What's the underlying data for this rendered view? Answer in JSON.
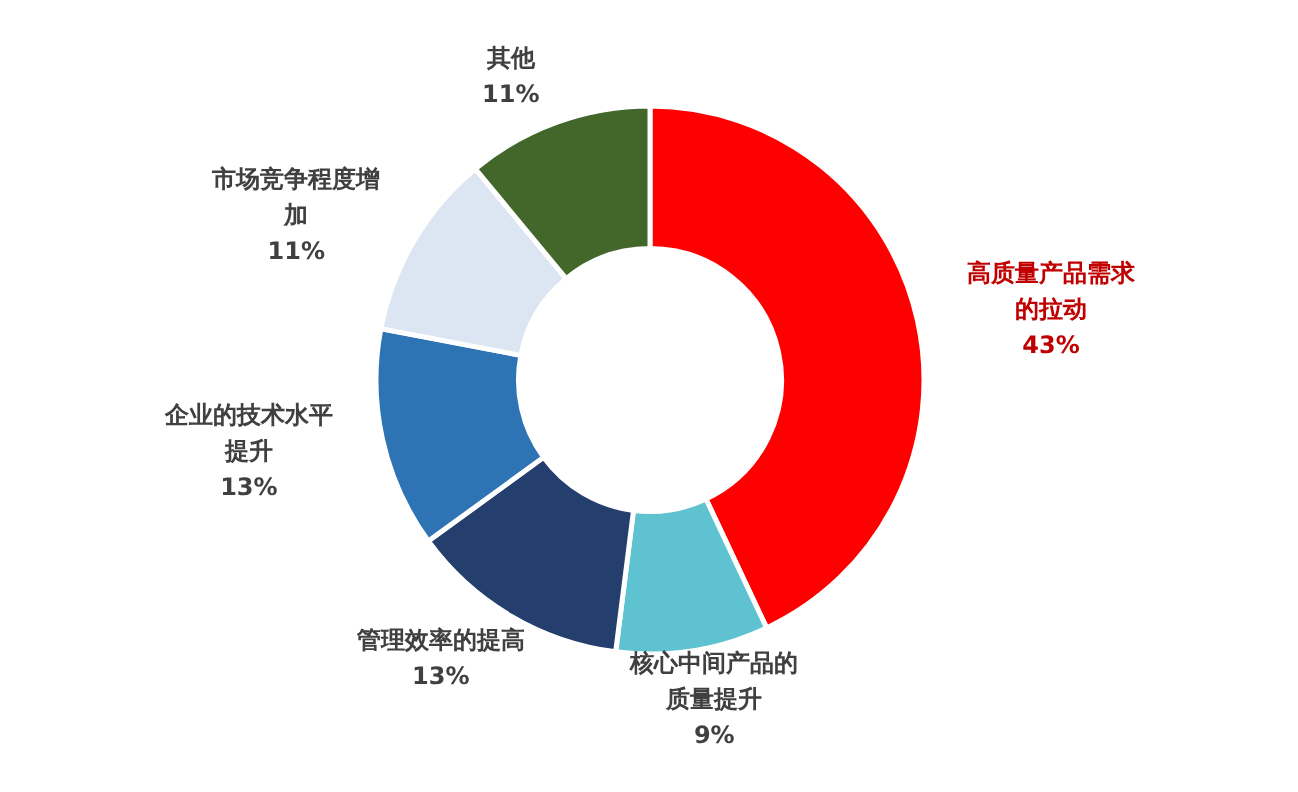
{
  "chart_data": {
    "type": "donut",
    "categories": [
      "高质量产品需求的拉动",
      "核心中间产品的质量提升",
      "管理效率的提高",
      "企业的技术水平提升",
      "市场竞争程度增加",
      "其他"
    ],
    "values": [
      43,
      9,
      13,
      13,
      11,
      11
    ],
    "colors": [
      "#ff0000",
      "#5fc2d0",
      "#243f6e",
      "#2e73b4",
      "#dce6f2",
      "#43672a"
    ],
    "value_labels": [
      "43%",
      "9%",
      "13%",
      "13%",
      "11%",
      "11%"
    ]
  }
}
